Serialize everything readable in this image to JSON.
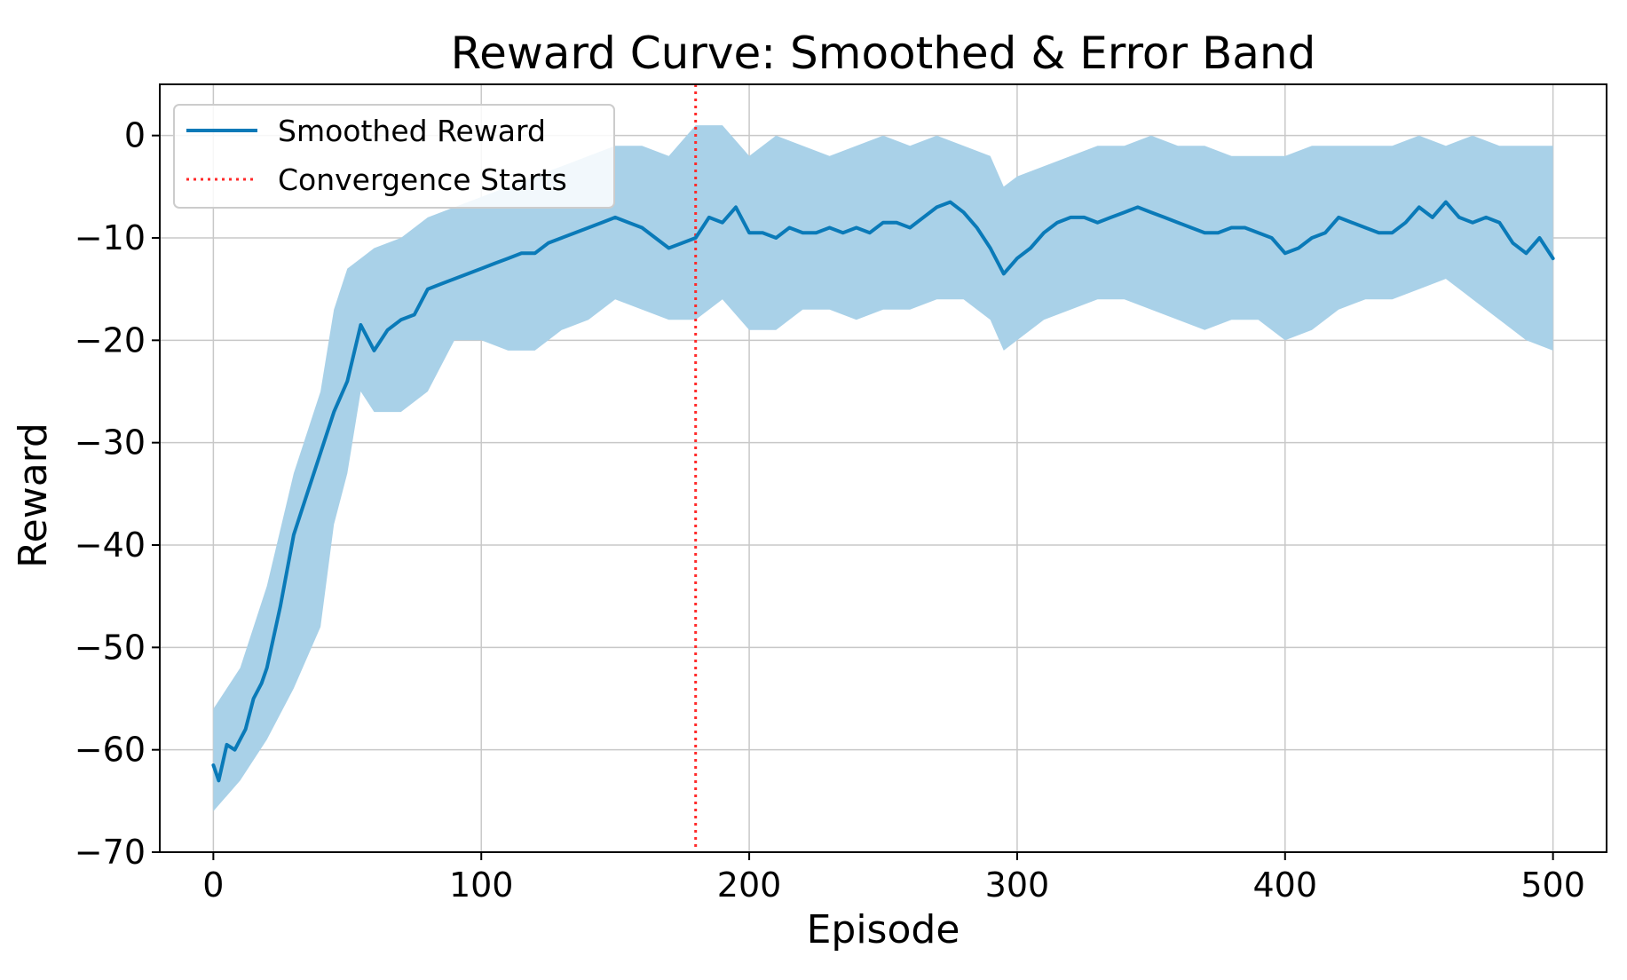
{
  "chart_data": {
    "type": "line",
    "title": "Reward Curve: Smoothed & Error Band",
    "xlabel": "Episode",
    "ylabel": "Reward",
    "xlim": [
      -20,
      520
    ],
    "ylim": [
      -70,
      5
    ],
    "xticks": [
      0,
      100,
      200,
      300,
      400,
      500
    ],
    "yticks": [
      0,
      -10,
      -20,
      -30,
      -40,
      -50,
      -60,
      -70
    ],
    "grid": true,
    "legend_position": "top-left",
    "colors": {
      "line": "#0a7ab8",
      "band": "#a9d1e8",
      "convergence": "#ff2a2a",
      "grid": "#c8c8c8"
    },
    "series": [
      {
        "name": "Smoothed Reward",
        "x": [
          0,
          2,
          5,
          8,
          12,
          15,
          18,
          20,
          25,
          30,
          35,
          40,
          45,
          50,
          55,
          60,
          65,
          70,
          75,
          80,
          85,
          90,
          95,
          100,
          105,
          110,
          115,
          120,
          125,
          130,
          135,
          140,
          145,
          150,
          155,
          160,
          165,
          170,
          175,
          180,
          185,
          190,
          195,
          200,
          205,
          210,
          215,
          220,
          225,
          230,
          235,
          240,
          245,
          250,
          255,
          260,
          265,
          270,
          275,
          280,
          285,
          290,
          295,
          300,
          305,
          310,
          315,
          320,
          325,
          330,
          335,
          340,
          345,
          350,
          355,
          360,
          365,
          370,
          375,
          380,
          385,
          390,
          395,
          400,
          405,
          410,
          415,
          420,
          425,
          430,
          435,
          440,
          445,
          450,
          455,
          460,
          465,
          470,
          475,
          480,
          485,
          490,
          495,
          500
        ],
        "y": [
          -61.5,
          -63,
          -59.5,
          -60,
          -58,
          -55,
          -53.5,
          -52,
          -46,
          -39,
          -35,
          -31,
          -27,
          -24,
          -18.5,
          -21,
          -19,
          -18,
          -17.5,
          -15,
          -14.5,
          -14,
          -13.5,
          -13,
          -12.5,
          -12,
          -11.5,
          -11.5,
          -10.5,
          -10,
          -9.5,
          -9,
          -8.5,
          -8,
          -8.5,
          -9,
          -10,
          -11,
          -10.5,
          -10,
          -8,
          -8.5,
          -7,
          -9.5,
          -9.5,
          -10,
          -9,
          -9.5,
          -9.5,
          -9,
          -9.5,
          -9,
          -9.5,
          -8.5,
          -8.5,
          -9,
          -8,
          -7,
          -6.5,
          -7.5,
          -9,
          -11,
          -13.5,
          -12,
          -11,
          -9.5,
          -8.5,
          -8,
          -8,
          -8.5,
          -8,
          -7.5,
          -7,
          -7.5,
          -8,
          -8.5,
          -9,
          -9.5,
          -9.5,
          -9,
          -9,
          -9.5,
          -10,
          -11.5,
          -11,
          -10,
          -9.5,
          -8,
          -8.5,
          -9,
          -9.5,
          -9.5,
          -8.5,
          -7,
          -8,
          -6.5,
          -8,
          -8.5,
          -8,
          -8.5,
          -10.5,
          -11.5,
          -10,
          -12
        ]
      }
    ],
    "error_band": {
      "x": [
        0,
        10,
        20,
        30,
        40,
        45,
        50,
        55,
        60,
        70,
        80,
        90,
        100,
        110,
        120,
        130,
        140,
        150,
        160,
        170,
        180,
        190,
        200,
        210,
        220,
        230,
        240,
        250,
        260,
        270,
        280,
        290,
        295,
        300,
        310,
        320,
        330,
        340,
        350,
        360,
        370,
        380,
        390,
        400,
        410,
        420,
        430,
        440,
        450,
        460,
        470,
        480,
        490,
        500
      ],
      "upper": [
        -56,
        -52,
        -44,
        -33,
        -25,
        -17,
        -13,
        -12,
        -11,
        -10,
        -8,
        -7,
        -6,
        -5,
        -4,
        -3,
        -2,
        -1,
        -1,
        -2,
        1,
        1,
        -2,
        0,
        -1,
        -2,
        -1,
        0,
        -1,
        0,
        -1,
        -2,
        -5,
        -4,
        -3,
        -2,
        -1,
        -1,
        0,
        -1,
        -1,
        -2,
        -2,
        -2,
        -1,
        -1,
        -1,
        -1,
        0,
        -1,
        0,
        -1,
        -1,
        -1
      ],
      "lower": [
        -66,
        -63,
        -59,
        -54,
        -48,
        -38,
        -33,
        -25,
        -27,
        -27,
        -25,
        -20,
        -20,
        -21,
        -21,
        -19,
        -18,
        -16,
        -17,
        -18,
        -18,
        -16,
        -19,
        -19,
        -17,
        -17,
        -18,
        -17,
        -17,
        -16,
        -16,
        -18,
        -21,
        -20,
        -18,
        -17,
        -16,
        -16,
        -17,
        -18,
        -19,
        -18,
        -18,
        -20,
        -19,
        -17,
        -16,
        -16,
        -15,
        -14,
        -16,
        -18,
        -20,
        -21
      ]
    },
    "convergence": {
      "name": "Convergence Starts",
      "x": 180
    }
  }
}
